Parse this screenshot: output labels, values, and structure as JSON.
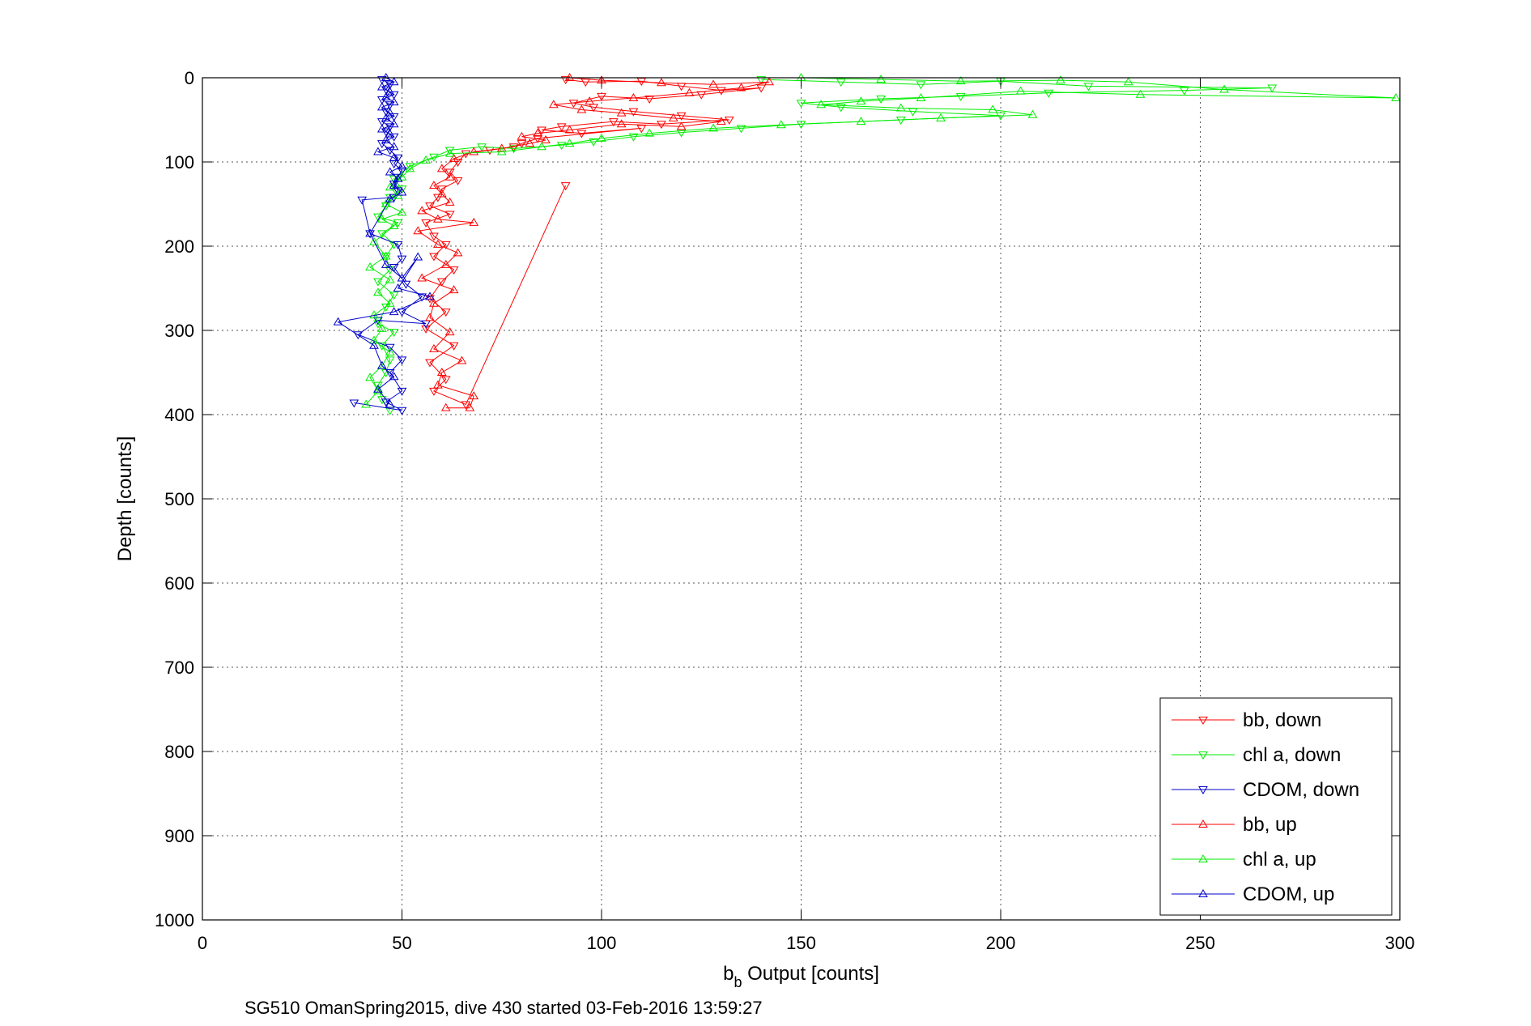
{
  "chart_data": {
    "type": "scatter",
    "title": "",
    "xlabel_base": "b",
    "xlabel_sub": "b",
    "xlabel_rest": " Output [counts]",
    "ylabel": "Depth [counts]",
    "caption": "SG510 OmanSpring2015, dive 430 started 03-Feb-2016 13:59:27",
    "xlim": [
      0,
      300
    ],
    "ylim": [
      0,
      1000
    ],
    "y_reversed": true,
    "x_ticks": [
      0,
      50,
      100,
      150,
      200,
      250,
      300
    ],
    "y_ticks": [
      0,
      100,
      200,
      300,
      400,
      500,
      600,
      700,
      800,
      900,
      1000
    ],
    "grid": true,
    "legend_position": "bottom-right",
    "series": [
      {
        "name": "bb, down",
        "color": "#ff0000",
        "marker": "triangle-down",
        "points": [
          [
            91,
            2
          ],
          [
            96,
            5
          ],
          [
            110,
            4
          ],
          [
            120,
            10
          ],
          [
            130,
            15
          ],
          [
            140,
            12
          ],
          [
            125,
            20
          ],
          [
            112,
            25
          ],
          [
            100,
            22
          ],
          [
            93,
            30
          ],
          [
            98,
            35
          ],
          [
            108,
            40
          ],
          [
            120,
            45
          ],
          [
            132,
            50
          ],
          [
            115,
            55
          ],
          [
            103,
            52
          ],
          [
            90,
            58
          ],
          [
            85,
            62
          ],
          [
            95,
            66
          ],
          [
            110,
            60
          ],
          [
            84,
            72
          ],
          [
            80,
            78
          ],
          [
            78,
            82
          ],
          [
            72,
            86
          ],
          [
            66,
            90
          ],
          [
            64,
            100
          ],
          [
            62,
            112
          ],
          [
            64,
            122
          ],
          [
            60,
            132
          ],
          [
            59,
            142
          ],
          [
            57,
            152
          ],
          [
            62,
            162
          ],
          [
            56,
            172
          ],
          [
            58,
            188
          ],
          [
            61,
            198
          ],
          [
            58,
            212
          ],
          [
            63,
            228
          ],
          [
            60,
            242
          ],
          [
            57,
            262
          ],
          [
            61,
            278
          ],
          [
            56,
            298
          ],
          [
            63,
            318
          ],
          [
            57,
            338
          ],
          [
            61,
            358
          ],
          [
            58,
            372
          ],
          [
            66,
            388
          ],
          [
            91,
            128
          ]
        ]
      },
      {
        "name": "chl a, down",
        "color": "#00ee00",
        "marker": "triangle-down",
        "points": [
          [
            140,
            2
          ],
          [
            160,
            5
          ],
          [
            180,
            8
          ],
          [
            200,
            4
          ],
          [
            222,
            10
          ],
          [
            268,
            12
          ],
          [
            246,
            15
          ],
          [
            212,
            18
          ],
          [
            190,
            22
          ],
          [
            170,
            25
          ],
          [
            150,
            30
          ],
          [
            160,
            35
          ],
          [
            178,
            40
          ],
          [
            200,
            45
          ],
          [
            175,
            50
          ],
          [
            150,
            55
          ],
          [
            135,
            60
          ],
          [
            120,
            65
          ],
          [
            108,
            70
          ],
          [
            98,
            76
          ],
          [
            90,
            80
          ],
          [
            78,
            84
          ],
          [
            70,
            82
          ],
          [
            62,
            86
          ],
          [
            58,
            94
          ],
          [
            52,
            105
          ],
          [
            48,
            120
          ],
          [
            50,
            132
          ],
          [
            47,
            142
          ],
          [
            46,
            152
          ],
          [
            44,
            165
          ],
          [
            49,
            172
          ],
          [
            45,
            185
          ],
          [
            48,
            198
          ],
          [
            46,
            212
          ],
          [
            47,
            228
          ],
          [
            44,
            242
          ],
          [
            48,
            258
          ],
          [
            46,
            272
          ],
          [
            44,
            292
          ],
          [
            48,
            302
          ],
          [
            45,
            318
          ],
          [
            47,
            335
          ],
          [
            46,
            350
          ],
          [
            44,
            365
          ],
          [
            45,
            382
          ],
          [
            47,
            395
          ]
        ]
      },
      {
        "name": "CDOM, down",
        "color": "#0000cc",
        "marker": "triangle-down",
        "points": [
          [
            45,
            2
          ],
          [
            47,
            8
          ],
          [
            46,
            14
          ],
          [
            48,
            20
          ],
          [
            45,
            26
          ],
          [
            47,
            32
          ],
          [
            46,
            40
          ],
          [
            48,
            46
          ],
          [
            45,
            52
          ],
          [
            47,
            58
          ],
          [
            46,
            64
          ],
          [
            48,
            70
          ],
          [
            45,
            78
          ],
          [
            47,
            86
          ],
          [
            49,
            95
          ],
          [
            48,
            102
          ],
          [
            50,
            110
          ],
          [
            49,
            118
          ],
          [
            48,
            126
          ],
          [
            49,
            134
          ],
          [
            48,
            142
          ],
          [
            40,
            145
          ],
          [
            42,
            185
          ],
          [
            49,
            198
          ],
          [
            50,
            215
          ],
          [
            48,
            225
          ],
          [
            51,
            245
          ],
          [
            55,
            260
          ],
          [
            50,
            278
          ],
          [
            56,
            292
          ],
          [
            44,
            288
          ],
          [
            39,
            305
          ],
          [
            47,
            320
          ],
          [
            50,
            335
          ],
          [
            47,
            350
          ],
          [
            50,
            372
          ],
          [
            46,
            385
          ],
          [
            50,
            395
          ],
          [
            38,
            386
          ]
        ]
      },
      {
        "name": "bb, up",
        "color": "#ff0000",
        "marker": "triangle-up",
        "points": [
          [
            92,
            0
          ],
          [
            100,
            3
          ],
          [
            115,
            6
          ],
          [
            128,
            8
          ],
          [
            142,
            5
          ],
          [
            135,
            12
          ],
          [
            122,
            18
          ],
          [
            108,
            24
          ],
          [
            97,
            28
          ],
          [
            88,
            32
          ],
          [
            95,
            38
          ],
          [
            105,
            42
          ],
          [
            118,
            48
          ],
          [
            130,
            52
          ],
          [
            120,
            58
          ],
          [
            105,
            55
          ],
          [
            92,
            62
          ],
          [
            84,
            66
          ],
          [
            80,
            70
          ],
          [
            86,
            74
          ],
          [
            82,
            78
          ],
          [
            75,
            84
          ],
          [
            68,
            88
          ],
          [
            63,
            96
          ],
          [
            60,
            108
          ],
          [
            62,
            118
          ],
          [
            58,
            128
          ],
          [
            60,
            138
          ],
          [
            62,
            148
          ],
          [
            55,
            158
          ],
          [
            59,
            168
          ],
          [
            68,
            172
          ],
          [
            54,
            182
          ],
          [
            59,
            198
          ],
          [
            64,
            208
          ],
          [
            61,
            222
          ],
          [
            55,
            238
          ],
          [
            63,
            252
          ],
          [
            58,
            268
          ],
          [
            57,
            285
          ],
          [
            62,
            302
          ],
          [
            58,
            322
          ],
          [
            65,
            336
          ],
          [
            60,
            350
          ],
          [
            59,
            365
          ],
          [
            68,
            378
          ],
          [
            67,
            392
          ],
          [
            61,
            392
          ]
        ]
      },
      {
        "name": "chl a, up",
        "color": "#00ee00",
        "marker": "triangle-up",
        "points": [
          [
            150,
            0
          ],
          [
            170,
            2
          ],
          [
            190,
            4
          ],
          [
            215,
            3
          ],
          [
            232,
            5
          ],
          [
            256,
            14
          ],
          [
            299,
            24
          ],
          [
            235,
            20
          ],
          [
            205,
            16
          ],
          [
            180,
            24
          ],
          [
            165,
            28
          ],
          [
            155,
            32
          ],
          [
            175,
            36
          ],
          [
            198,
            38
          ],
          [
            208,
            44
          ],
          [
            185,
            48
          ],
          [
            165,
            52
          ],
          [
            145,
            56
          ],
          [
            128,
            60
          ],
          [
            112,
            66
          ],
          [
            100,
            72
          ],
          [
            92,
            78
          ],
          [
            85,
            82
          ],
          [
            75,
            88
          ],
          [
            62,
            90
          ],
          [
            56,
            98
          ],
          [
            52,
            108
          ],
          [
            50,
            118
          ],
          [
            47,
            130
          ],
          [
            49,
            140
          ],
          [
            46,
            150
          ],
          [
            50,
            160
          ],
          [
            45,
            168
          ],
          [
            48,
            176
          ],
          [
            43,
            195
          ],
          [
            46,
            212
          ],
          [
            42,
            225
          ],
          [
            47,
            240
          ],
          [
            44,
            255
          ],
          [
            47,
            268
          ],
          [
            43,
            282
          ],
          [
            45,
            298
          ],
          [
            43,
            312
          ],
          [
            47,
            326
          ],
          [
            45,
            342
          ],
          [
            42,
            356
          ],
          [
            44,
            372
          ],
          [
            41,
            388
          ]
        ]
      },
      {
        "name": "CDOM, up",
        "color": "#0000cc",
        "marker": "triangle-up",
        "points": [
          [
            46,
            0
          ],
          [
            48,
            5
          ],
          [
            45,
            11
          ],
          [
            47,
            17
          ],
          [
            46,
            23
          ],
          [
            48,
            29
          ],
          [
            45,
            35
          ],
          [
            47,
            42
          ],
          [
            46,
            48
          ],
          [
            48,
            55
          ],
          [
            45,
            61
          ],
          [
            47,
            67
          ],
          [
            46,
            74
          ],
          [
            48,
            82
          ],
          [
            44,
            88
          ],
          [
            48,
            95
          ],
          [
            50,
            105
          ],
          [
            47,
            112
          ],
          [
            49,
            120
          ],
          [
            48,
            128
          ],
          [
            50,
            136
          ],
          [
            47,
            144
          ],
          [
            42,
            185
          ],
          [
            46,
            222
          ],
          [
            50,
            238
          ],
          [
            54,
            213
          ],
          [
            49,
            250
          ],
          [
            57,
            260
          ],
          [
            48,
            278
          ],
          [
            34,
            290
          ],
          [
            43,
            318
          ],
          [
            45,
            342
          ],
          [
            48,
            355
          ],
          [
            44,
            370
          ],
          [
            47,
            388
          ]
        ]
      }
    ]
  }
}
